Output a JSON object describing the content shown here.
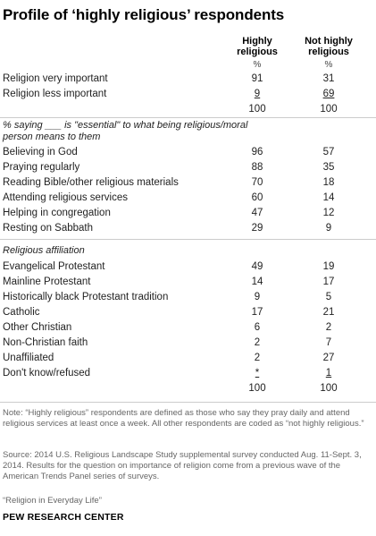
{
  "title": "Profile of ‘highly religious’ respondents",
  "columns": {
    "col1": {
      "line1": "Highly",
      "line2": "religious",
      "unit": "%"
    },
    "col2": {
      "line1": "Not highly",
      "line2": "religious",
      "unit": "%"
    }
  },
  "importance": [
    {
      "label": "Religion very important",
      "v1": "91",
      "v2": "31"
    },
    {
      "label": "Religion less important",
      "v1": "9",
      "v2": "69"
    },
    {
      "label": "",
      "v1": "100",
      "v2": "100"
    }
  ],
  "essential_heading": "% saying ___ is \"essential\" to what being religious/moral person means to them",
  "essential": [
    {
      "label": "Believing in God",
      "v1": "96",
      "v2": "57"
    },
    {
      "label": "Praying regularly",
      "v1": "88",
      "v2": "35"
    },
    {
      "label": "Reading Bible/other religious materials",
      "v1": "70",
      "v2": "18"
    },
    {
      "label": "Attending religious services",
      "v1": "60",
      "v2": "14"
    },
    {
      "label": "Helping in congregation",
      "v1": "47",
      "v2": "12"
    },
    {
      "label": "Resting on Sabbath",
      "v1": "29",
      "v2": "9"
    }
  ],
  "affiliation_heading": "Religious affiliation",
  "affiliation": [
    {
      "label": "Evangelical Protestant",
      "v1": "49",
      "v2": "19"
    },
    {
      "label": "Mainline Protestant",
      "v1": "14",
      "v2": "17"
    },
    {
      "label": "Historically black Protestant tradition",
      "v1": "9",
      "v2": "5"
    },
    {
      "label": "Catholic",
      "v1": "17",
      "v2": "21"
    },
    {
      "label": "Other Christian",
      "v1": "6",
      "v2": "2"
    },
    {
      "label": "Non-Christian faith",
      "v1": "2",
      "v2": "7"
    },
    {
      "label": "Unaffiliated",
      "v1": "2",
      "v2": "27"
    },
    {
      "label": "Don't know/refused",
      "v1": "*",
      "v2": "1"
    },
    {
      "label": "",
      "v1": "100",
      "v2": "100"
    }
  ],
  "note": "Note: “Highly religious” respondents are defined as those who say they pray daily and attend religious services at least once a week. All other respondents are coded as “not highly religious.”",
  "source": "Source: 2014 U.S. Religious Landscape Study supplemental survey conducted Aug. 11-Sept. 3, 2014. Results for the question on importance of religion come from a previous wave of the American Trends Panel series of surveys.",
  "report_title": "“Religion in Everyday Life”",
  "brand": "PEW RESEARCH CENTER"
}
